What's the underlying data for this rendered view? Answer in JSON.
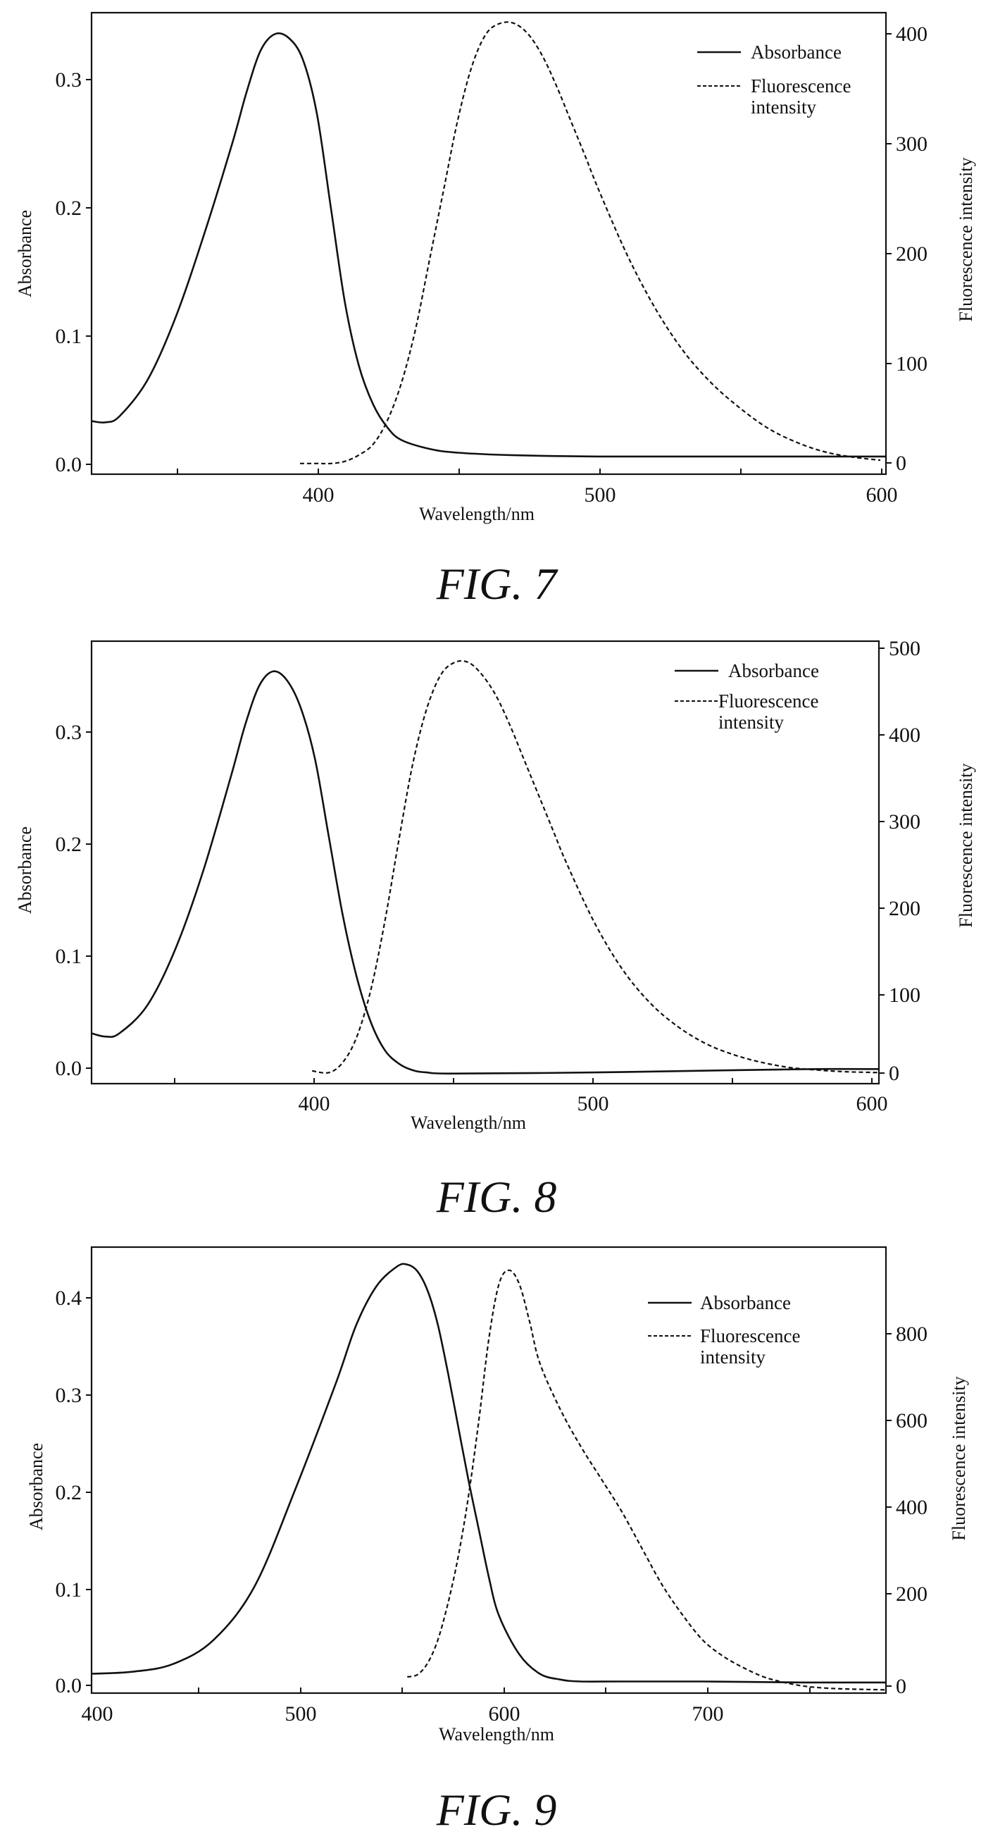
{
  "chart_data": [
    {
      "type": "line",
      "caption": "FIG. 7",
      "xlabel": "Wavelength/nm",
      "ylabel_left": "Absorbance",
      "ylabel_right": "Fluorescence intensity",
      "xlim": [
        320,
        602
      ],
      "ylim_left": [
        -0.01,
        0.355
      ],
      "ylim_right": [
        -10,
        420
      ],
      "x_ticks": [
        400,
        500,
        600
      ],
      "y_ticks_left": [
        0.0,
        0.1,
        0.2,
        0.3
      ],
      "y_ticks_right": [
        0,
        100,
        200,
        300,
        400
      ],
      "grid": false,
      "legend": "top-right",
      "series": [
        {
          "name": "Absorbance",
          "axis": "left",
          "style": "solid",
          "x": [
            320,
            325,
            330,
            340,
            350,
            360,
            370,
            375,
            380,
            385,
            390,
            395,
            400,
            405,
            410,
            415,
            420,
            425,
            430,
            440,
            450,
            470,
            500,
            550,
            602
          ],
          "y": [
            0.032,
            0.031,
            0.036,
            0.065,
            0.115,
            0.18,
            0.252,
            0.292,
            0.325,
            0.338,
            0.335,
            0.318,
            0.275,
            0.2,
            0.125,
            0.075,
            0.045,
            0.027,
            0.017,
            0.01,
            0.007,
            0.005,
            0.004,
            0.004,
            0.004
          ]
        },
        {
          "name": "Fluorescence intensity",
          "axis": "right",
          "style": "dashed",
          "x": [
            394,
            400,
            405,
            410,
            415,
            420,
            425,
            430,
            435,
            440,
            445,
            450,
            455,
            460,
            465,
            470,
            475,
            480,
            485,
            490,
            495,
            500,
            510,
            520,
            530,
            540,
            550,
            560,
            570,
            580,
            590,
            600
          ],
          "y": [
            0,
            0,
            0,
            2,
            8,
            18,
            40,
            75,
            125,
            190,
            255,
            320,
            370,
            400,
            410,
            410,
            400,
            380,
            352,
            320,
            288,
            255,
            195,
            145,
            105,
            75,
            52,
            33,
            20,
            11,
            6,
            3
          ]
        }
      ]
    },
    {
      "type": "line",
      "caption": "FIG. 8",
      "xlabel": "Wavelength/nm",
      "ylabel_left": "Absorbance",
      "ylabel_right": "Fluorescence intensity",
      "xlim": [
        320,
        602
      ],
      "ylim_left": [
        -0.01,
        0.385
      ],
      "ylim_right": [
        -10,
        510
      ],
      "x_ticks": [
        400,
        500,
        600
      ],
      "y_ticks_left": [
        0.0,
        0.1,
        0.2,
        0.3
      ],
      "y_ticks_right": [
        0,
        100,
        200,
        300,
        400,
        500
      ],
      "grid": false,
      "legend": "top-right",
      "series": [
        {
          "name": "Absorbance",
          "axis": "left",
          "style": "solid",
          "x": [
            320,
            325,
            330,
            340,
            350,
            360,
            370,
            375,
            380,
            385,
            390,
            395,
            400,
            405,
            410,
            415,
            420,
            425,
            430,
            435,
            440,
            450,
            500,
            550,
            580,
            602
          ],
          "y": [
            0.035,
            0.032,
            0.035,
            0.06,
            0.11,
            0.18,
            0.265,
            0.31,
            0.345,
            0.358,
            0.35,
            0.325,
            0.28,
            0.21,
            0.14,
            0.085,
            0.045,
            0.02,
            0.008,
            0.002,
            0.0,
            -0.001,
            0.0,
            0.002,
            0.003,
            0.003
          ]
        },
        {
          "name": "Fluorescence intensity",
          "axis": "right",
          "style": "dashed",
          "x": [
            399,
            405,
            410,
            415,
            420,
            425,
            430,
            435,
            440,
            445,
            450,
            455,
            460,
            465,
            470,
            475,
            480,
            485,
            490,
            500,
            510,
            520,
            530,
            540,
            550,
            560,
            570,
            580,
            590,
            602
          ],
          "y": [
            5,
            3,
            15,
            45,
            100,
            180,
            275,
            365,
            430,
            470,
            485,
            485,
            470,
            445,
            410,
            370,
            330,
            290,
            250,
            180,
            125,
            85,
            57,
            37,
            24,
            15,
            9,
            6,
            4,
            3
          ]
        }
      ]
    },
    {
      "type": "line",
      "caption": "FIG. 9",
      "xlabel": "Wavelength/nm",
      "ylabel_left": "Absorbance",
      "ylabel_right": "Fluorescence intensity",
      "xlim": [
        400,
        790
      ],
      "ylim_left": [
        -0.01,
        0.45
      ],
      "ylim_right": [
        -5,
        960
      ],
      "x_ticks": [
        400,
        500,
        600,
        700
      ],
      "y_ticks_left": [
        0.0,
        0.1,
        0.2,
        0.3,
        0.4
      ],
      "y_ticks_right": [
        0,
        200,
        400,
        600,
        800
      ],
      "grid": false,
      "legend": "top-right",
      "series": [
        {
          "name": "Absorbance",
          "axis": "left",
          "style": "solid",
          "x": [
            400,
            420,
            440,
            460,
            480,
            500,
            520,
            530,
            540,
            550,
            555,
            560,
            565,
            570,
            575,
            580,
            585,
            590,
            595,
            600,
            610,
            620,
            630,
            640,
            660,
            700,
            750,
            790
          ],
          "y": [
            0.01,
            0.012,
            0.02,
            0.045,
            0.1,
            0.2,
            0.31,
            0.37,
            0.41,
            0.43,
            0.432,
            0.425,
            0.405,
            0.37,
            0.32,
            0.265,
            0.21,
            0.16,
            0.11,
            0.07,
            0.03,
            0.01,
            0.004,
            0.002,
            0.002,
            0.002,
            0.001,
            0.001
          ]
        },
        {
          "name": "Fluorescence intensity",
          "axis": "right",
          "style": "dashed",
          "x": [
            555,
            560,
            565,
            570,
            575,
            580,
            585,
            590,
            595,
            600,
            605,
            610,
            615,
            620,
            630,
            640,
            650,
            660,
            670,
            680,
            690,
            700,
            710,
            720,
            730,
            740,
            750,
            760,
            770,
            790
          ],
          "y": [
            30,
            35,
            60,
            110,
            190,
            290,
            420,
            580,
            760,
            880,
            910,
            880,
            800,
            710,
            610,
            530,
            460,
            390,
            310,
            230,
            165,
            110,
            75,
            50,
            30,
            18,
            10,
            6,
            4,
            2
          ]
        }
      ]
    }
  ]
}
